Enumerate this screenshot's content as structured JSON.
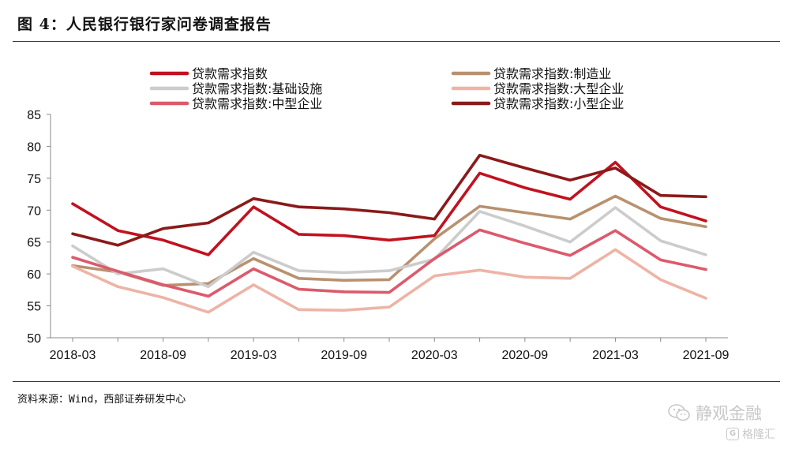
{
  "header": {
    "title": "图 4：人民银行银行家问卷调查报告"
  },
  "footer": {
    "source": "资料来源：Wind，西部证券研发中心"
  },
  "watermark": {
    "main": "静观金融",
    "sub": "格隆汇",
    "icon_main": "wechat-icon",
    "icon_sub": "g-logo-icon"
  },
  "chart_data": {
    "type": "line",
    "x": [
      "2018-03",
      "2018-06",
      "2018-09",
      "2018-12",
      "2019-03",
      "2019-06",
      "2019-09",
      "2019-12",
      "2020-03",
      "2020-06",
      "2020-09",
      "2020-12",
      "2021-03",
      "2021-06",
      "2021-09"
    ],
    "x_tick_labels": [
      "2018-03",
      "2018-09",
      "2019-03",
      "2019-09",
      "2020-03",
      "2020-09",
      "2021-03",
      "2021-09"
    ],
    "ylim": [
      50,
      85
    ],
    "y_ticks": [
      50,
      55,
      60,
      65,
      70,
      75,
      80,
      85
    ],
    "xlabel": "",
    "ylabel": "",
    "grid": false,
    "legend_position": "top",
    "series": [
      {
        "name": "贷款需求指数",
        "color": "#c1121f",
        "values": [
          71.0,
          66.8,
          65.3,
          63.0,
          70.5,
          66.2,
          66.0,
          65.3,
          66.0,
          75.8,
          73.5,
          71.7,
          77.5,
          70.5,
          68.3
        ]
      },
      {
        "name": "贷款需求指数:制造业",
        "color": "#b9916f",
        "values": [
          61.3,
          60.3,
          58.2,
          58.5,
          62.4,
          59.3,
          59.0,
          59.1,
          65.5,
          70.6,
          69.6,
          68.6,
          72.2,
          68.7,
          67.4
        ]
      },
      {
        "name": "贷款需求指数:基础设施",
        "color": "#cccccc",
        "values": [
          64.4,
          60.0,
          60.8,
          58.0,
          63.4,
          60.5,
          60.2,
          60.5,
          62.3,
          69.8,
          67.5,
          65.0,
          70.4,
          65.2,
          63.0
        ]
      },
      {
        "name": "贷款需求指数:大型企业",
        "color": "#edb4a6",
        "values": [
          61.2,
          58.0,
          56.3,
          54.0,
          58.3,
          54.4,
          54.3,
          54.8,
          59.7,
          60.6,
          59.5,
          59.3,
          63.8,
          59.1,
          56.2
        ]
      },
      {
        "name": "贷款需求指数:中型企业",
        "color": "#dc5a6c",
        "values": [
          62.6,
          60.4,
          58.3,
          56.5,
          60.8,
          57.6,
          57.2,
          57.1,
          62.4,
          66.9,
          64.8,
          62.9,
          66.8,
          62.2,
          60.7
        ]
      },
      {
        "name": "贷款需求指数:小型企业",
        "color": "#8b1a1a",
        "values": [
          66.3,
          64.5,
          67.1,
          68.0,
          71.8,
          70.5,
          70.2,
          69.6,
          68.6,
          78.6,
          76.6,
          74.7,
          76.6,
          72.3,
          72.1
        ]
      }
    ]
  }
}
